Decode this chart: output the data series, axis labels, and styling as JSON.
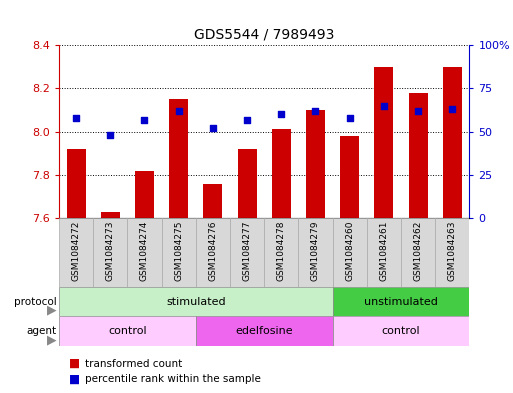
{
  "title": "GDS5544 / 7989493",
  "samples": [
    "GSM1084272",
    "GSM1084273",
    "GSM1084274",
    "GSM1084275",
    "GSM1084276",
    "GSM1084277",
    "GSM1084278",
    "GSM1084279",
    "GSM1084260",
    "GSM1084261",
    "GSM1084262",
    "GSM1084263"
  ],
  "bar_values": [
    7.92,
    7.63,
    7.82,
    8.15,
    7.76,
    7.92,
    8.01,
    8.1,
    7.98,
    8.3,
    8.18,
    8.3
  ],
  "bar_base": 7.6,
  "percentile_values": [
    58,
    48,
    57,
    62,
    52,
    57,
    60,
    62,
    58,
    65,
    62,
    63
  ],
  "ylim_left": [
    7.6,
    8.4
  ],
  "ylim_right": [
    0,
    100
  ],
  "yticks_left": [
    7.6,
    7.8,
    8.0,
    8.2,
    8.4
  ],
  "yticks_right": [
    0,
    25,
    50,
    75,
    100
  ],
  "right_tick_labels": [
    "0",
    "25",
    "50",
    "75",
    "100%"
  ],
  "bar_color": "#cc0000",
  "dot_color": "#0000cc",
  "protocol_groups": [
    {
      "label": "stimulated",
      "start": 0,
      "end": 7,
      "color": "#c8f0c8"
    },
    {
      "label": "unstimulated",
      "start": 8,
      "end": 11,
      "color": "#44cc44"
    }
  ],
  "agent_groups": [
    {
      "label": "control",
      "start": 0,
      "end": 3,
      "color": "#ffccff"
    },
    {
      "label": "edelfosine",
      "start": 4,
      "end": 7,
      "color": "#ee66ee"
    },
    {
      "label": "control",
      "start": 8,
      "end": 11,
      "color": "#ffccff"
    }
  ],
  "legend_bar_label": "transformed count",
  "legend_dot_label": "percentile rank within the sample",
  "left_axis_color": "#cc0000",
  "right_axis_color": "#0000cc",
  "bar_width": 0.55,
  "label_color": "#888888",
  "cell_color": "#d8d8d8",
  "cell_edge_color": "#aaaaaa"
}
